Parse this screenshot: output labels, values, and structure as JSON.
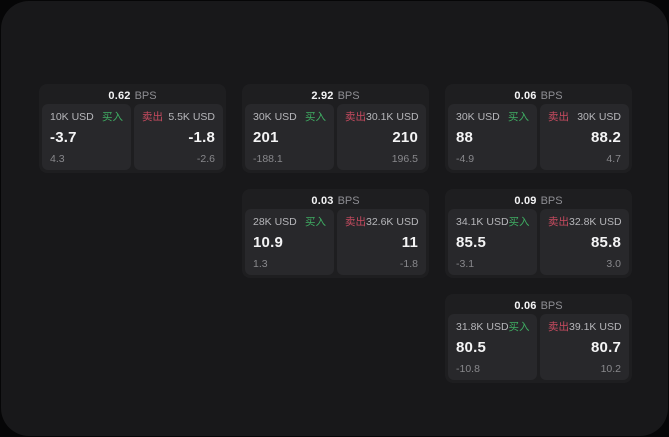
{
  "labels": {
    "buy": "买入",
    "sell": "卖出",
    "bps_unit": "BPS"
  },
  "colors": {
    "background": "#060607",
    "surface": "#18181a",
    "card": "#1e1e20",
    "panel": "#28282b",
    "buy_green": "#3fae63",
    "sell_red": "#c84b60",
    "value_white": "#f4f4f5",
    "muted_gray": "#8e8e93"
  },
  "cards": [
    {
      "bps": "0.62",
      "col": 1,
      "row": 1,
      "buy": {
        "size": "10K USD",
        "price": "-3.7",
        "change": "4.3"
      },
      "sell": {
        "size": "5.5K USD",
        "price": "-1.8",
        "change": "-2.6"
      }
    },
    {
      "bps": "2.92",
      "col": 2,
      "row": 1,
      "buy": {
        "size": "30K USD",
        "price": "201",
        "change": "-188.1"
      },
      "sell": {
        "size": "30.1K USD",
        "price": "210",
        "change": "196.5"
      }
    },
    {
      "bps": "0.06",
      "col": 3,
      "row": 1,
      "buy": {
        "size": "30K USD",
        "price": "88",
        "change": "-4.9"
      },
      "sell": {
        "size": "30K USD",
        "price": "88.2",
        "change": "4.7"
      }
    },
    {
      "bps": "0.03",
      "col": 2,
      "row": 2,
      "buy": {
        "size": "28K USD",
        "price": "10.9",
        "change": "1.3"
      },
      "sell": {
        "size": "32.6K USD",
        "price": "11",
        "change": "-1.8"
      }
    },
    {
      "bps": "0.09",
      "col": 3,
      "row": 2,
      "buy": {
        "size": "34.1K USD",
        "price": "85.5",
        "change": "-3.1"
      },
      "sell": {
        "size": "32.8K USD",
        "price": "85.8",
        "change": "3.0"
      }
    },
    {
      "bps": "0.06",
      "col": 3,
      "row": 3,
      "buy": {
        "size": "31.8K USD",
        "price": "80.5",
        "change": "-10.8"
      },
      "sell": {
        "size": "39.1K USD",
        "price": "80.7",
        "change": "10.2"
      }
    }
  ]
}
